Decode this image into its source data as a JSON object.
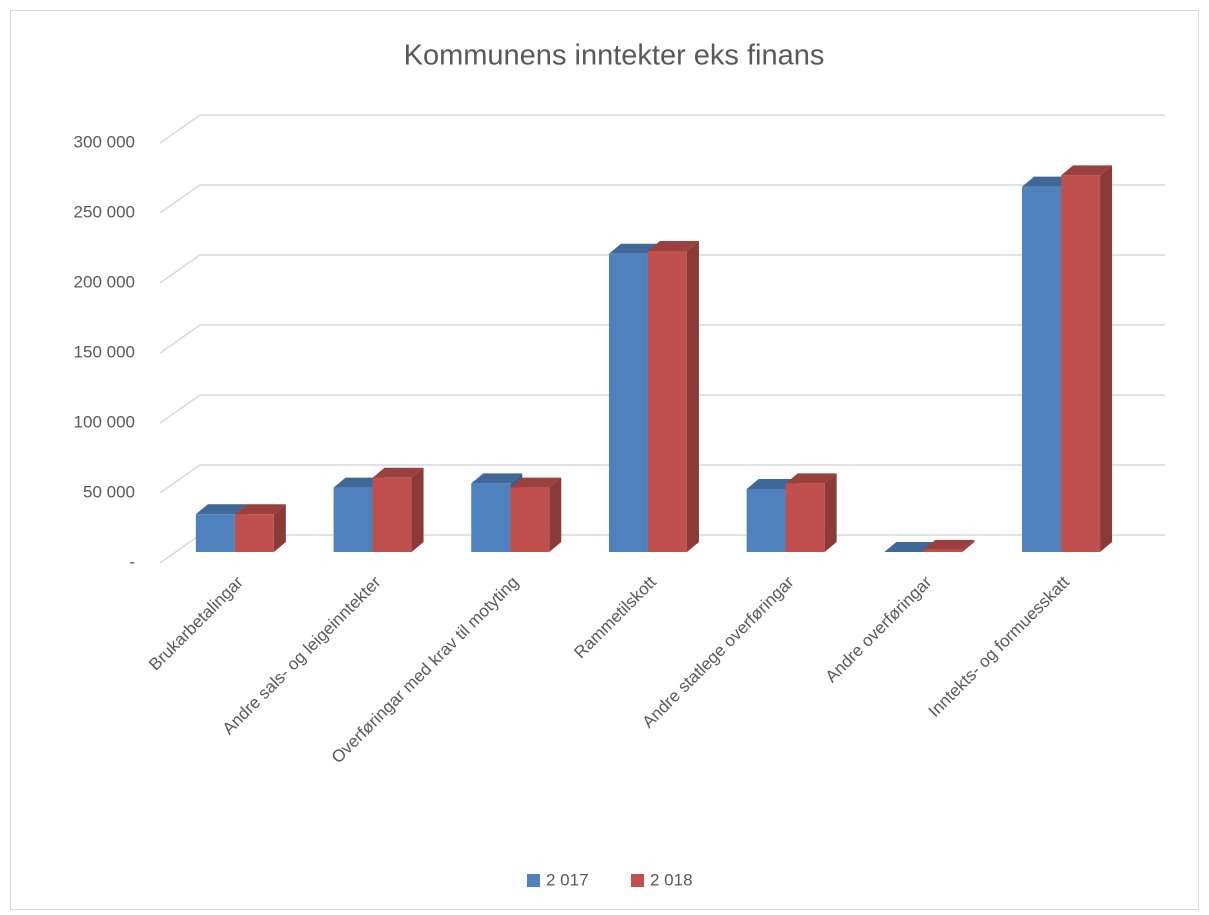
{
  "chart_data": {
    "type": "bar3d",
    "title": "Kommunens inntekter eks finans",
    "categories": [
      "Brukarbetalingar",
      "Andre sals- og leigeinntekter",
      "Overføringar med krav til motyting",
      "Rammetilskott",
      "Andre statlege overføringar",
      "Andre overføringar",
      "Inntekts- og formuesskatt"
    ],
    "series": [
      {
        "name": "2 017",
        "color": "#4f81bd",
        "values": [
          27000,
          46000,
          49000,
          213000,
          45000,
          0,
          261000
        ]
      },
      {
        "name": "2 018",
        "color": "#c0504d",
        "values": [
          27000,
          53000,
          46000,
          215000,
          49000,
          1500,
          269000
        ]
      }
    ],
    "ylim": [
      0,
      300000
    ],
    "yticks": [
      {
        "value": 0,
        "label": "-"
      },
      {
        "value": 50000,
        "label": "50 000"
      },
      {
        "value": 100000,
        "label": "100 000"
      },
      {
        "value": 150000,
        "label": "150 000"
      },
      {
        "value": 200000,
        "label": "200 000"
      },
      {
        "value": 250000,
        "label": "250 000"
      },
      {
        "value": 300000,
        "label": "300 000"
      }
    ],
    "grid": true,
    "legend": "bottom"
  }
}
